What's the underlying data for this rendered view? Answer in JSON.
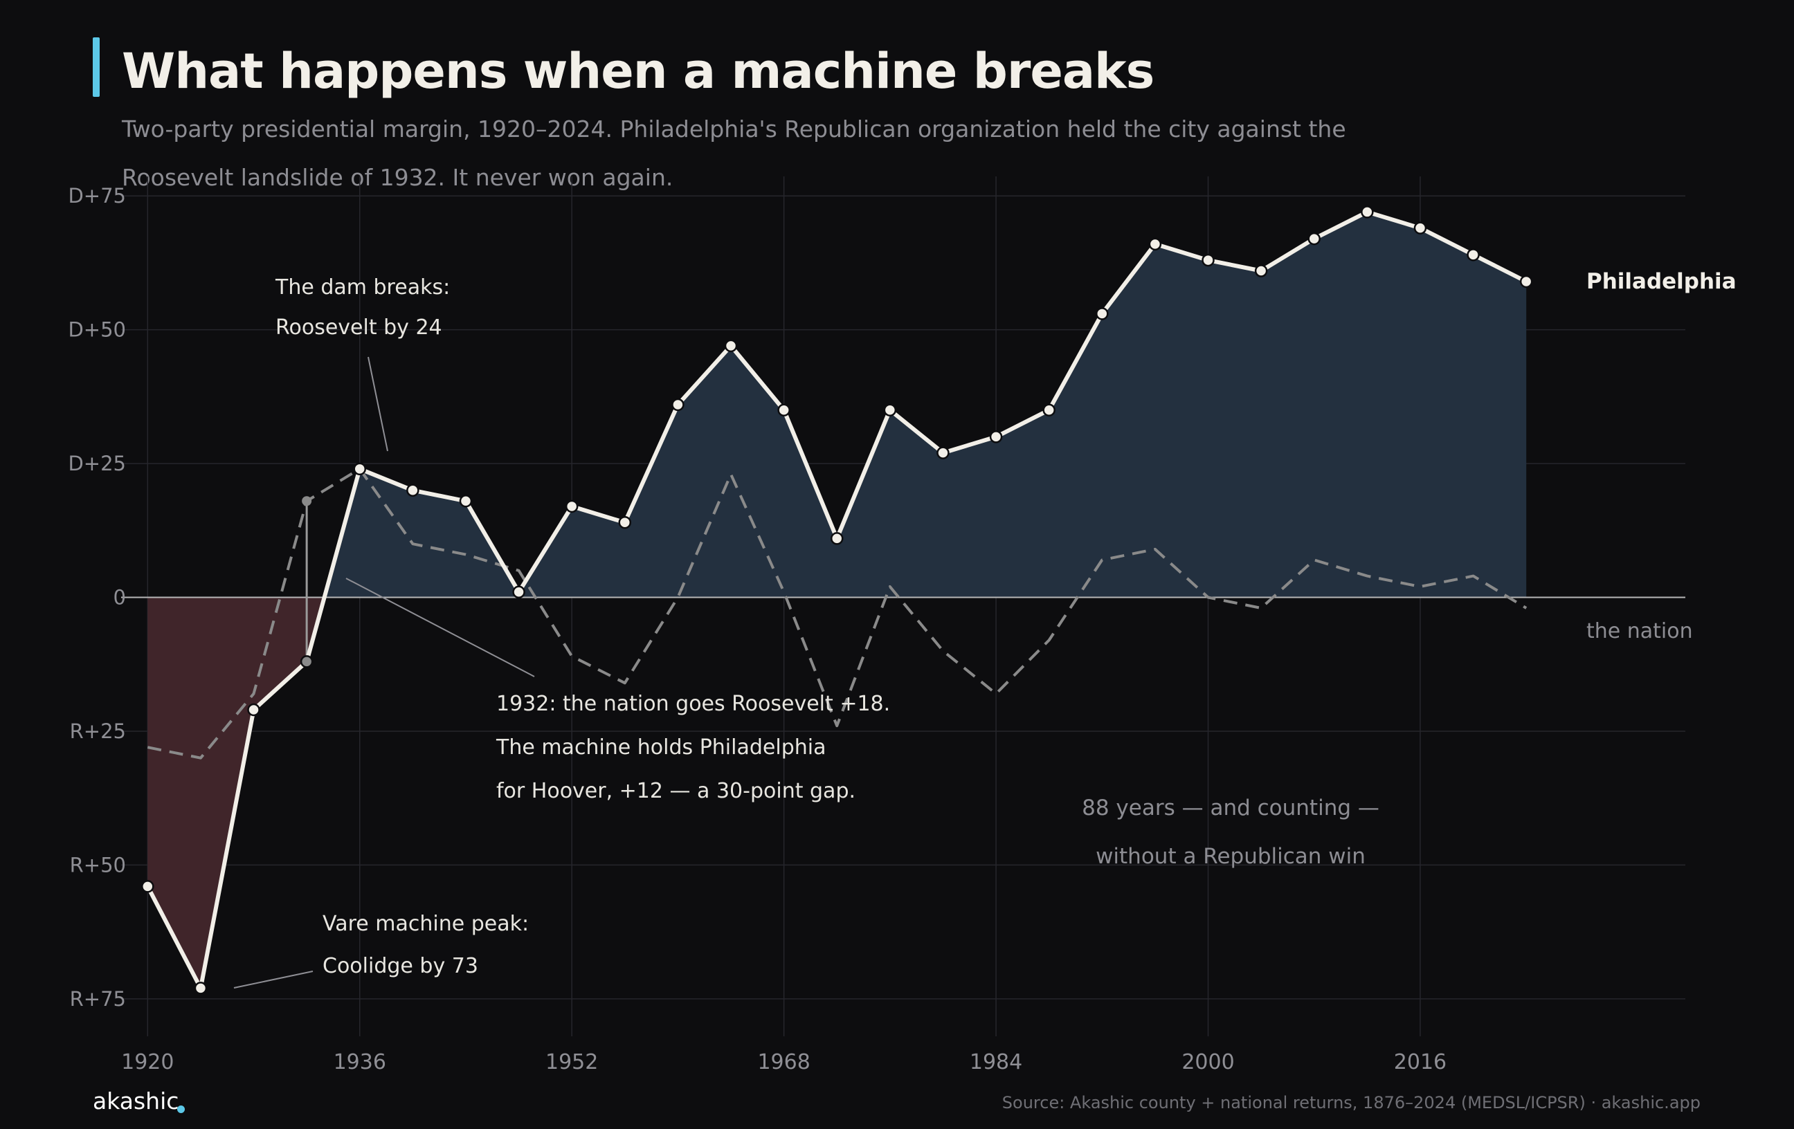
{
  "header": {
    "title": "What happens when a machine breaks",
    "subtitle": "Two-party presidential margin, 1920–2024. Philadelphia's Republican organization held the city against the Roosevelt landslide of 1932. It never won again."
  },
  "footer": {
    "brand": "akashic",
    "source": "Source: Akashic county + national returns, 1876–2024 (MEDSL/ICPSR) · akashic.app"
  },
  "colors": {
    "background": "#0d0d0f",
    "accent": "#5cc8e8",
    "city_line": "#f2efe8",
    "national_line": "#8a8a8a",
    "dem_fill": "#23303f",
    "rep_fill": "#40252a"
  },
  "chart_data": {
    "type": "line",
    "title": "What happens when a machine breaks",
    "xlabel": "",
    "ylabel": "",
    "x_ticks": [
      "1920",
      "1936",
      "1952",
      "1968",
      "1984",
      "2000",
      "2016"
    ],
    "y_ticks": [
      {
        "value": 75,
        "label": "D+75"
      },
      {
        "value": 50,
        "label": "D+50"
      },
      {
        "value": 25,
        "label": "D+25"
      },
      {
        "value": 0,
        "label": "0"
      },
      {
        "value": -25,
        "label": "R+25"
      },
      {
        "value": -50,
        "label": "R+50"
      },
      {
        "value": -75,
        "label": "R+75"
      }
    ],
    "xlim": [
      1918,
      2036
    ],
    "ylim": [
      -82,
      78
    ],
    "grid": true,
    "x": [
      1920,
      1924,
      1928,
      1932,
      1936,
      1940,
      1944,
      1948,
      1952,
      1956,
      1960,
      1964,
      1968,
      1972,
      1976,
      1980,
      1984,
      1988,
      1992,
      1996,
      2000,
      2004,
      2008,
      2012,
      2016,
      2020,
      2024
    ],
    "series": [
      {
        "name": "Philadelphia",
        "style": "solid",
        "values": [
          -54,
          -73,
          -21,
          -12,
          24,
          20,
          18,
          1,
          17,
          14,
          36,
          47,
          35,
          11,
          35,
          27,
          30,
          35,
          53,
          66,
          63,
          61,
          67,
          72,
          69,
          64,
          59
        ]
      },
      {
        "name": "the nation",
        "style": "dashed",
        "values": [
          -28,
          -30,
          -18,
          18,
          24,
          10,
          8,
          5,
          -11,
          -16,
          0,
          23,
          1,
          -24,
          2,
          -10,
          -18,
          -8,
          7,
          9,
          0,
          -2,
          7,
          4,
          2,
          4,
          -2
        ]
      }
    ],
    "annotations": [
      {
        "lines": [
          "The dam breaks:",
          "Roosevelt by 24"
        ]
      },
      {
        "lines": [
          "1932: the nation goes Roosevelt +18.",
          "The machine holds Philadelphia",
          "for Hoover, +12 — a 30-point gap."
        ]
      },
      {
        "lines": [
          "Vare machine peak:",
          "Coolidge by 73"
        ]
      },
      {
        "lines": [
          "88 years — and counting —",
          "without a Republican win"
        ]
      }
    ]
  }
}
